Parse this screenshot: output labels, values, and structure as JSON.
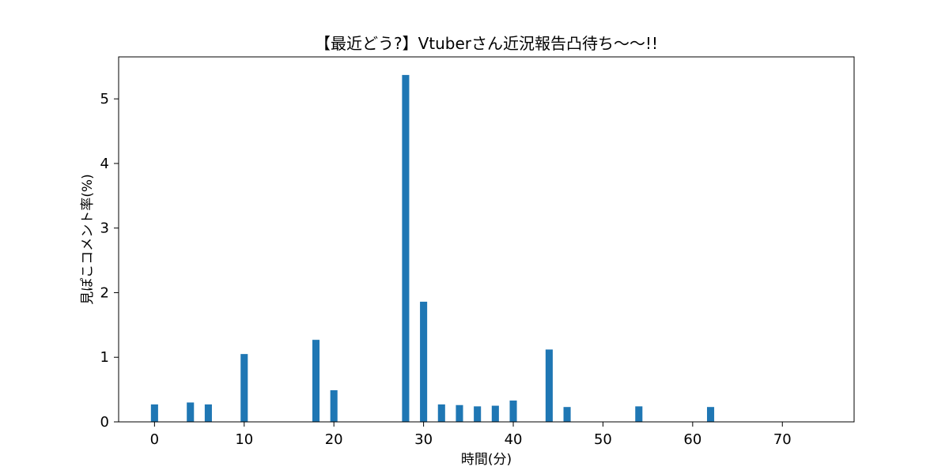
{
  "chart_data": {
    "type": "bar",
    "title": "【最近どう?】Vtuberさん近況報告凸待ち〜〜!!",
    "xlabel": "時間(分)",
    "ylabel": "見ぽこコメント率(%)",
    "xlim": [
      -4,
      78
    ],
    "ylim": [
      0,
      5.65
    ],
    "xticks": [
      0,
      10,
      20,
      30,
      40,
      50,
      60,
      70
    ],
    "yticks": [
      0,
      1,
      2,
      3,
      4,
      5
    ],
    "bar_width": 0.8,
    "grid": false,
    "color": "#1f77b4",
    "x": [
      0,
      4,
      6,
      10,
      18,
      20,
      28,
      30,
      32,
      34,
      36,
      38,
      40,
      44,
      46,
      54,
      62
    ],
    "values": [
      0.27,
      0.3,
      0.27,
      1.05,
      1.27,
      0.49,
      5.37,
      1.86,
      0.27,
      0.26,
      0.24,
      0.25,
      0.33,
      1.12,
      0.23,
      0.24,
      0.23
    ]
  }
}
